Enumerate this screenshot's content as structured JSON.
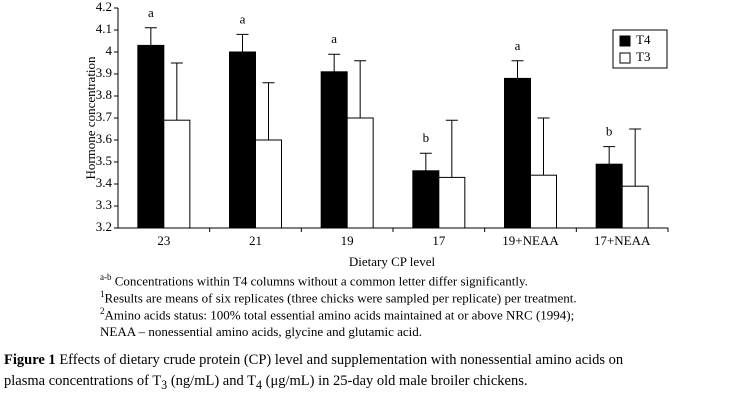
{
  "chart_data": {
    "type": "bar",
    "categories": [
      "23",
      "21",
      "19",
      "17",
      "19+NEAA",
      "17+NEAA"
    ],
    "series": [
      {
        "name": "T4",
        "color": "#000000",
        "values": [
          4.03,
          4.0,
          3.91,
          3.46,
          3.88,
          3.49
        ],
        "errors": [
          0.08,
          0.08,
          0.08,
          0.08,
          0.08,
          0.08
        ],
        "letters": [
          "a",
          "a",
          "a",
          "b",
          "a",
          "b"
        ]
      },
      {
        "name": "T3",
        "color": "#ffffff",
        "values": [
          3.69,
          3.6,
          3.7,
          3.43,
          3.44,
          3.39
        ],
        "errors": [
          0.26,
          0.26,
          0.26,
          0.26,
          0.26,
          0.26
        ]
      }
    ],
    "ylim": [
      3.2,
      4.2
    ],
    "yticks": [
      3.2,
      3.3,
      3.4,
      3.5,
      3.6,
      3.7,
      3.8,
      3.9,
      4,
      4.1,
      4.2
    ],
    "ylabel": "Hormone concentration",
    "xlabel": "Dietary CP level",
    "grid": false,
    "legend": "top-right"
  },
  "footnotes": [
    {
      "mark": "a-b",
      "text": "Concentrations within T4 columns without a common letter differ significantly."
    },
    {
      "mark": "1",
      "text": "Results are means of six replicates (three chicks were sampled per replicate) per treatment."
    },
    {
      "mark": "2",
      "text": "Amino acids status: 100% total essential amino acids maintained at or above NRC (1994);"
    },
    {
      "mark": "",
      "text": "NEAA – nonessential amino acids, glycine and glutamic acid."
    }
  ],
  "caption": {
    "label": "Figure 1",
    "line1": "Effects of dietary crude protein (CP) level and supplementation with nonessential amino acids on",
    "line2": [
      "plasma concentrations of T",
      "3",
      " (ng/mL) and T",
      "4",
      " (μg/mL) in 25-day old male broiler chickens."
    ]
  }
}
